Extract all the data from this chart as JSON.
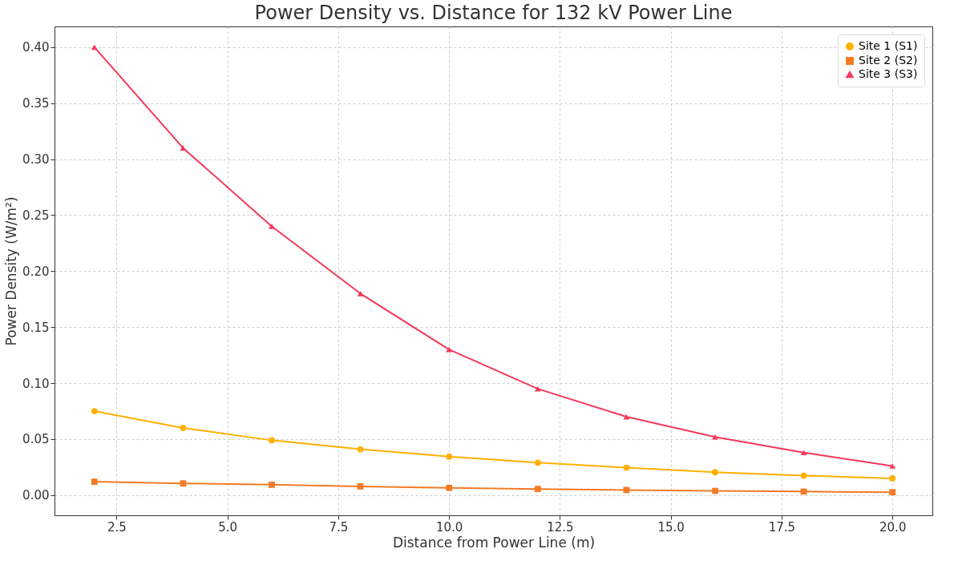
{
  "chart_data": {
    "type": "line",
    "title": "Power Density vs. Distance for 132 kV Power Line",
    "xlabel": "Distance from Power Line (m)",
    "ylabel": "Power Density (W/m²)",
    "x": [
      2,
      4,
      6,
      8,
      10,
      12,
      14,
      16,
      18,
      20
    ],
    "series": [
      {
        "name": "Site 1 (S1)",
        "color": "#ffb000",
        "marker": "circle",
        "values": [
          0.075,
          0.06,
          0.049,
          0.041,
          0.0345,
          0.029,
          0.0245,
          0.0205,
          0.0175,
          0.015
        ]
      },
      {
        "name": "Site 2 (S2)",
        "color": "#f47a24",
        "marker": "square",
        "values": [
          0.012,
          0.0105,
          0.0093,
          0.0078,
          0.0065,
          0.0055,
          0.0046,
          0.0038,
          0.0032,
          0.0026
        ]
      },
      {
        "name": "Site 3 (S3)",
        "color": "#f5385a",
        "marker": "triangle",
        "values": [
          0.4,
          0.31,
          0.24,
          0.18,
          0.13,
          0.095,
          0.07,
          0.052,
          0.038,
          0.026
        ]
      }
    ],
    "xlim": [
      1.1,
      20.9
    ],
    "xticks": [
      {
        "value": 2.5,
        "label": "2.5"
      },
      {
        "value": 5,
        "label": "5.0"
      },
      {
        "value": 7.5,
        "label": "7.5"
      },
      {
        "value": 10,
        "label": "10.0"
      },
      {
        "value": 12.5,
        "label": "12.5"
      },
      {
        "value": 15,
        "label": "15.0"
      },
      {
        "value": 17.5,
        "label": "17.5"
      },
      {
        "value": 20,
        "label": "20.0"
      }
    ],
    "ylim": [
      -0.018,
      0.4185
    ],
    "yticks": [
      {
        "value": 0,
        "label": "0.00"
      },
      {
        "value": 0.05,
        "label": "0.05"
      },
      {
        "value": 0.1,
        "label": "0.10"
      },
      {
        "value": 0.15,
        "label": "0.15"
      },
      {
        "value": 0.2,
        "label": "0.20"
      },
      {
        "value": 0.25,
        "label": "0.25"
      },
      {
        "value": 0.3,
        "label": "0.30"
      },
      {
        "value": 0.35,
        "label": "0.35"
      },
      {
        "value": 0.4,
        "label": "0.40"
      }
    ],
    "grid": true,
    "legend": "top right",
    "line_style": "solid"
  }
}
